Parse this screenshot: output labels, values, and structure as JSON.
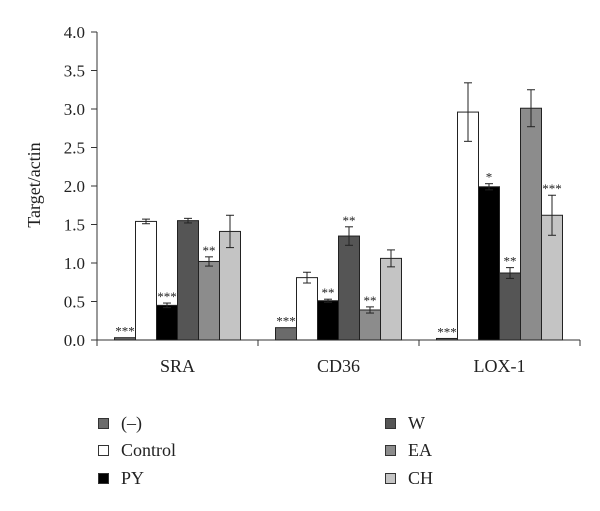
{
  "chart_data": {
    "type": "bar",
    "ylabel": "Target/actin",
    "ylim": [
      0,
      4.0
    ],
    "yticks": [
      "0.0",
      "0.5",
      "1.0",
      "1.5",
      "2.0",
      "2.5",
      "3.0",
      "3.5",
      "4.0"
    ],
    "categories": [
      "SRA",
      "CD36",
      "LOX-1"
    ],
    "grid": false,
    "legend_position": "bottom",
    "series": [
      {
        "name": "(–)",
        "color": "#6b6b6b",
        "values": [
          0.03,
          0.16,
          0.02
        ],
        "errors": [
          0,
          0,
          0
        ],
        "sig": [
          "***",
          "***",
          "***"
        ]
      },
      {
        "name": "Control",
        "color": "#ffffff",
        "values": [
          1.54,
          0.81,
          2.96
        ],
        "errors": [
          0.03,
          0.07,
          0.38
        ],
        "sig": [
          "",
          "",
          ""
        ]
      },
      {
        "name": "PY",
        "color": "#000000",
        "values": [
          0.45,
          0.51,
          1.99
        ],
        "errors": [
          0.03,
          0.02,
          0.04
        ],
        "sig": [
          "***",
          "**",
          "*"
        ]
      },
      {
        "name": "W",
        "color": "#555555",
        "values": [
          1.55,
          1.35,
          0.87
        ],
        "errors": [
          0.03,
          0.12,
          0.07
        ],
        "sig": [
          "",
          "**",
          "**"
        ]
      },
      {
        "name": "EA",
        "color": "#8c8c8c",
        "values": [
          1.02,
          0.39,
          3.01
        ],
        "errors": [
          0.06,
          0.04,
          0.24
        ],
        "sig": [
          "**",
          "**",
          ""
        ]
      },
      {
        "name": "CH",
        "color": "#c4c4c4",
        "values": [
          1.41,
          1.06,
          1.62
        ],
        "errors": [
          0.21,
          0.11,
          0.26
        ],
        "sig": [
          "",
          "",
          "***"
        ]
      }
    ]
  }
}
